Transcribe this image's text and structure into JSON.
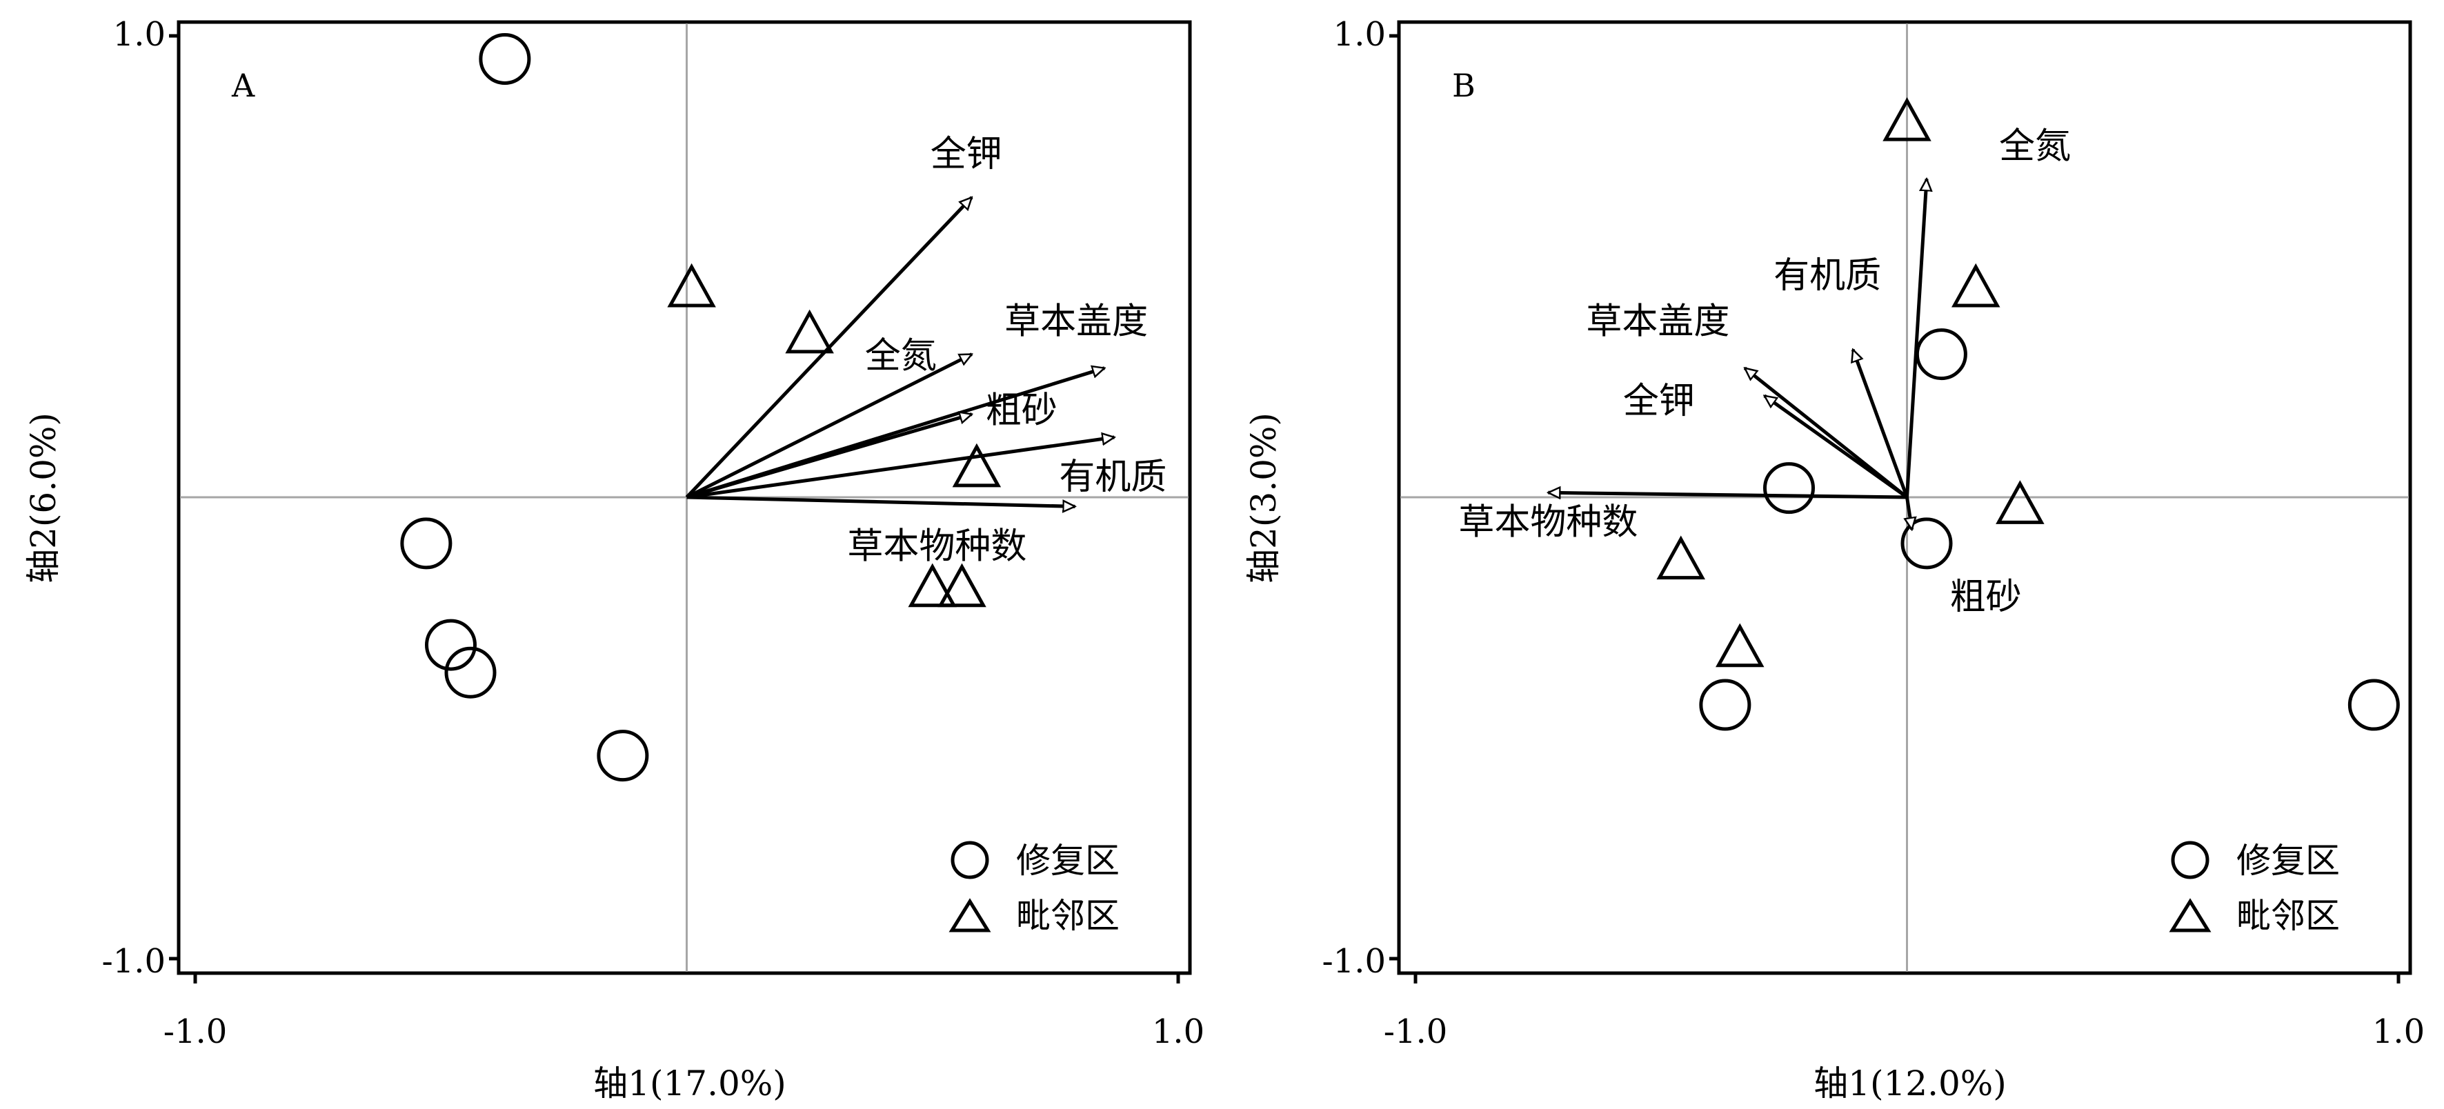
{
  "chart_data": [
    {
      "type": "scatter",
      "panel_label": "A",
      "xlabel": "轴1(17.0%)",
      "ylabel": "轴2(6.0%)",
      "xlim": [
        -1.0,
        1.0
      ],
      "ylim": [
        -1.0,
        1.0
      ],
      "x_ticks": [
        "-1.0",
        "1.0"
      ],
      "y_ticks": [
        "1.0",
        "-1.0"
      ],
      "legend_position": "bottom-right",
      "series": [
        {
          "name": "修复区",
          "marker": "circle",
          "points": [
            {
              "x": -0.37,
              "y": 0.95
            },
            {
              "x": -0.53,
              "y": -0.1
            },
            {
              "x": -0.48,
              "y": -0.32
            },
            {
              "x": -0.44,
              "y": -0.38
            },
            {
              "x": -0.13,
              "y": -0.56
            }
          ]
        },
        {
          "name": "毗邻区",
          "marker": "triangle",
          "points": [
            {
              "x": 0.01,
              "y": 0.45
            },
            {
              "x": 0.25,
              "y": 0.35
            },
            {
              "x": 0.59,
              "y": 0.06
            },
            {
              "x": 0.5,
              "y": -0.2
            },
            {
              "x": 0.56,
              "y": -0.2
            }
          ]
        }
      ],
      "vectors": [
        {
          "label": "全钾",
          "x": 0.58,
          "y": 0.65
        },
        {
          "label": "全氮",
          "x": 0.58,
          "y": 0.31
        },
        {
          "label": "草本盖度",
          "x": 0.85,
          "y": 0.28
        },
        {
          "label": "粗砂",
          "x": 0.58,
          "y": 0.18
        },
        {
          "label": "有机质",
          "x": 0.87,
          "y": 0.13
        },
        {
          "label": "草本物种数",
          "x": 0.79,
          "y": -0.02
        }
      ]
    },
    {
      "type": "scatter",
      "panel_label": "B",
      "xlabel": "轴1(12.0%)",
      "ylabel": "轴2(3.0%)",
      "xlim": [
        -1.0,
        1.0
      ],
      "ylim": [
        -1.0,
        1.0
      ],
      "x_ticks": [
        "-1.0",
        "1.0"
      ],
      "y_ticks": [
        "1.0",
        "-1.0"
      ],
      "legend_position": "bottom-right",
      "series": [
        {
          "name": "修复区",
          "marker": "circle",
          "points": [
            {
              "x": 0.07,
              "y": 0.31
            },
            {
              "x": -0.24,
              "y": 0.02
            },
            {
              "x": 0.04,
              "y": -0.1
            },
            {
              "x": -0.37,
              "y": -0.45
            },
            {
              "x": 0.95,
              "y": -0.45
            }
          ]
        },
        {
          "name": "毗邻区",
          "marker": "triangle",
          "points": [
            {
              "x": 0.0,
              "y": 0.81
            },
            {
              "x": 0.14,
              "y": 0.45
            },
            {
              "x": 0.23,
              "y": -0.02
            },
            {
              "x": -0.46,
              "y": -0.14
            },
            {
              "x": -0.34,
              "y": -0.33
            }
          ]
        }
      ],
      "vectors": [
        {
          "label": "全氮",
          "x": 0.04,
          "y": 0.69
        },
        {
          "label": "有机质",
          "x": -0.11,
          "y": 0.32
        },
        {
          "label": "草本盖度",
          "x": -0.33,
          "y": 0.28
        },
        {
          "label": "全钾",
          "x": -0.29,
          "y": 0.22
        },
        {
          "label": "草本物种数",
          "x": -0.73,
          "y": 0.01
        },
        {
          "label": "粗砂",
          "x": 0.01,
          "y": -0.07
        }
      ]
    }
  ]
}
